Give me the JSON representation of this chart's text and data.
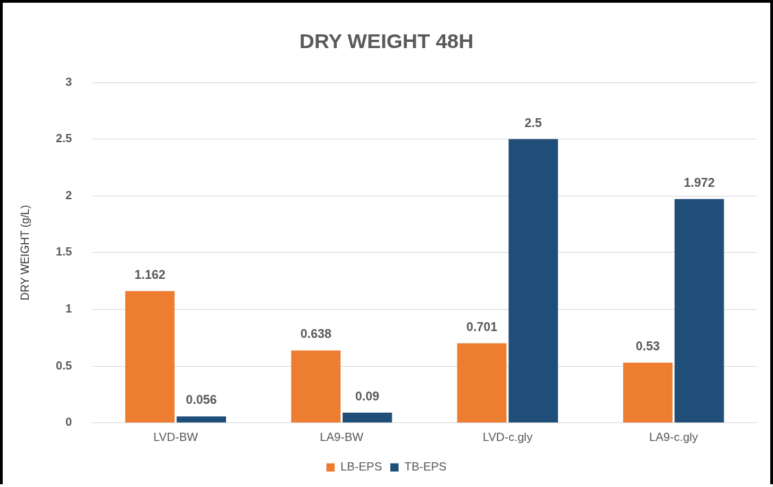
{
  "chart_data": {
    "type": "bar",
    "title": "DRY WEIGHT 48H",
    "ylabel": "DRY WEIGHT (g/L)",
    "categories": [
      "LVD-BW",
      "LA9-BW",
      "LVD-c.gly",
      "LA9-c.gly"
    ],
    "series": [
      {
        "name": "LB-EPS",
        "color": "#ed7d31",
        "values": [
          1.162,
          0.638,
          0.701,
          0.53
        ]
      },
      {
        "name": "TB-EPS",
        "color": "#1f4e79",
        "values": [
          0.056,
          0.09,
          2.5,
          1.972
        ]
      }
    ],
    "ylim": [
      0,
      3
    ],
    "yticks": [
      0,
      0.5,
      1,
      1.5,
      2,
      2.5,
      3
    ],
    "grid": "y",
    "legend": "bottom",
    "data_labels": true
  }
}
